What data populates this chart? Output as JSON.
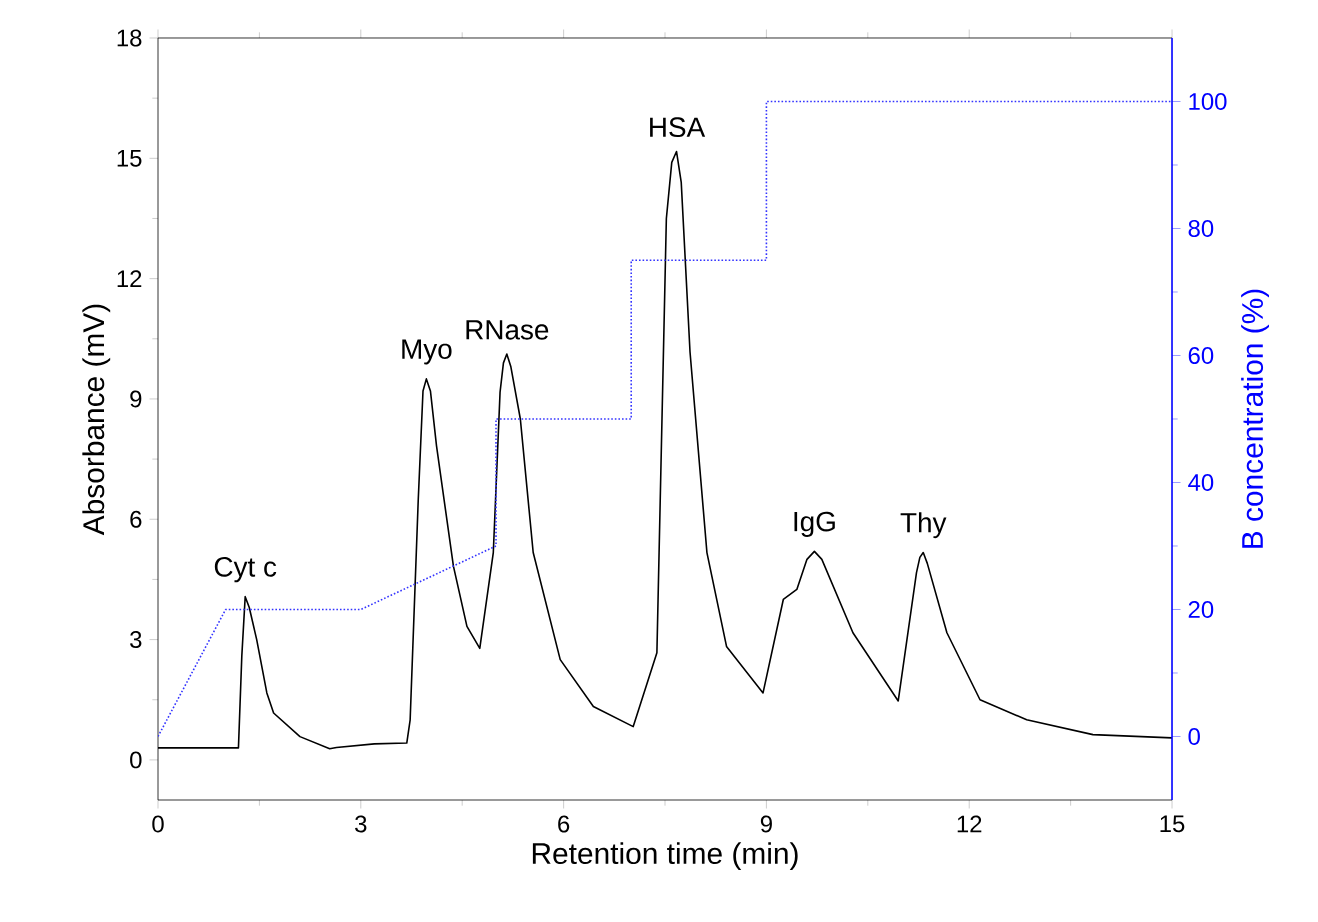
{
  "chart_data": {
    "type": "line",
    "xlabel": "Retention time (min)",
    "ylabel": "Absorbance (mV)",
    "y2label": "B concentration (%)",
    "xlim": [
      0,
      15
    ],
    "xticks": [
      0,
      3,
      6,
      9,
      12,
      15
    ],
    "ylim": [
      -1,
      18
    ],
    "yticks": [
      0,
      3,
      6,
      9,
      12,
      15,
      18
    ],
    "y2lim": [
      -10,
      110
    ],
    "y2ticks": [
      0,
      20,
      40,
      60,
      80,
      100
    ],
    "series": [
      {
        "color": "#000000",
        "line_style": "solid",
        "x": [
          0,
          0.5,
          1.0,
          1.19,
          1.24,
          1.29,
          1.35,
          1.46,
          1.61,
          1.71,
          2.1,
          2.54,
          2.64,
          3.2,
          3.68,
          3.73,
          3.85,
          3.92,
          3.97,
          4.03,
          4.12,
          4.37,
          4.57,
          4.76,
          4.96,
          5.06,
          5.11,
          5.16,
          5.22,
          5.36,
          5.55,
          5.95,
          6.44,
          7.03,
          7.38,
          7.52,
          7.6,
          7.67,
          7.74,
          7.87,
          8.12,
          8.41,
          8.95,
          9.25,
          9.45,
          9.6,
          9.71,
          9.82,
          10.28,
          10.95,
          11.22,
          11.27,
          11.32,
          11.38,
          11.67,
          12.16,
          12.85,
          13.83,
          15
        ],
        "values": [
          0.3,
          0.3,
          0.3,
          0.3,
          2.6,
          4.07,
          3.8,
          3.0,
          1.67,
          1.17,
          0.58,
          0.28,
          0.31,
          0.4,
          0.42,
          1.0,
          6.5,
          9.2,
          9.5,
          9.2,
          7.83,
          4.83,
          3.33,
          2.78,
          5.17,
          9.17,
          9.9,
          10.12,
          9.8,
          8.5,
          5.17,
          2.5,
          1.33,
          0.83,
          2.67,
          13.5,
          14.9,
          15.17,
          14.4,
          10.17,
          5.17,
          2.83,
          1.67,
          4.0,
          4.25,
          5.0,
          5.2,
          5.0,
          3.17,
          1.47,
          4.67,
          5.05,
          5.17,
          4.9,
          3.17,
          1.5,
          1.0,
          0.63,
          0.55
        ]
      },
      {
        "color": "#3333ff",
        "line_style": "dotted",
        "axis": "y2",
        "x": [
          0,
          1,
          3,
          5,
          5,
          7,
          7,
          9,
          9,
          15
        ],
        "values": [
          0,
          20,
          20,
          30,
          50,
          50,
          75,
          75,
          100,
          100
        ]
      }
    ],
    "annotations": [
      {
        "text": "Cyt c",
        "x": 1.29,
        "y": 4.07
      },
      {
        "text": "Myo",
        "x": 3.97,
        "y": 9.5
      },
      {
        "text": "RNase",
        "x": 5.16,
        "y": 10.12
      },
      {
        "text": "HSA",
        "x": 7.67,
        "y": 15.17
      },
      {
        "text": "IgG",
        "x": 9.71,
        "y": 5.2
      },
      {
        "text": "Thy",
        "x": 11.32,
        "y": 5.17
      }
    ]
  }
}
